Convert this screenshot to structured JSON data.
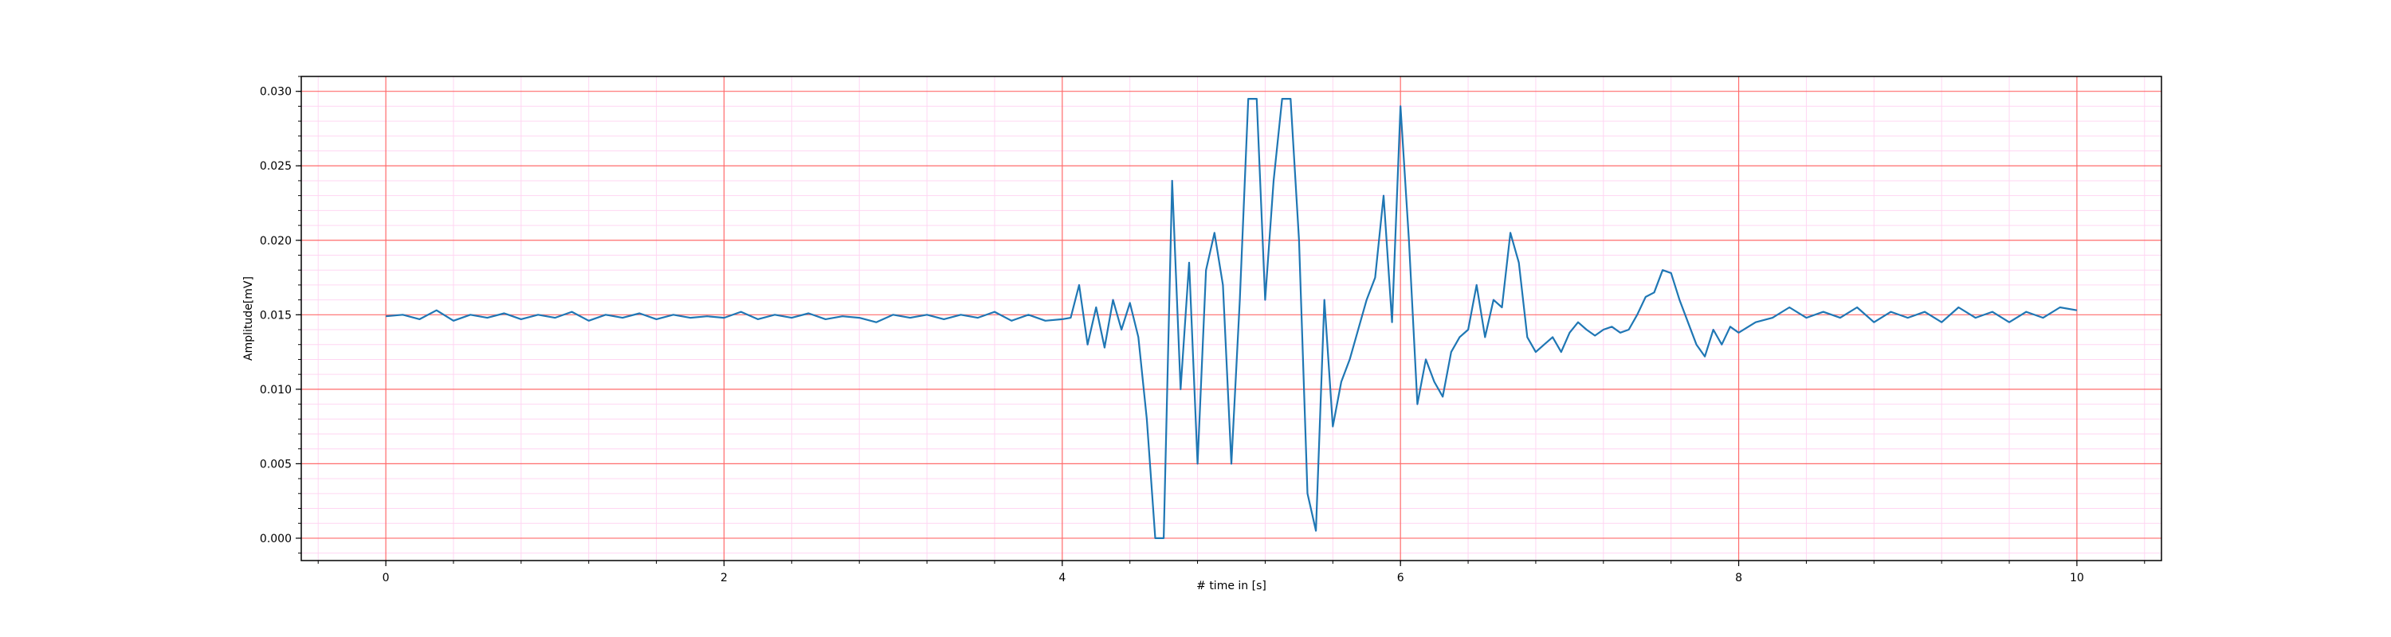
{
  "chart_data": {
    "type": "line",
    "title": "",
    "xlabel": "# time in [s]",
    "ylabel": "Amplitude[mV]",
    "xlim": [
      -0.5,
      10.5
    ],
    "ylim": [
      -0.0015,
      0.031
    ],
    "xticks": [
      0,
      2,
      4,
      6,
      8,
      10
    ],
    "xtick_labels": [
      "0",
      "2",
      "4",
      "6",
      "8",
      "10"
    ],
    "yticks": [
      0.0,
      0.005,
      0.01,
      0.015,
      0.02,
      0.025,
      0.03
    ],
    "ytick_labels": [
      "0.000",
      "0.005",
      "0.010",
      "0.015",
      "0.020",
      "0.025",
      "0.030"
    ],
    "grid": {
      "major": true,
      "minor": true,
      "major_color": "#ff6b6b",
      "minor_color": "#ffd6f2"
    },
    "line_color": "#1f77b4",
    "series": [
      {
        "x": [
          0.0,
          0.1,
          0.2,
          0.3,
          0.4,
          0.5,
          0.6,
          0.7,
          0.8,
          0.9,
          1.0,
          1.1,
          1.2,
          1.3,
          1.4,
          1.5,
          1.6,
          1.7,
          1.8,
          1.9,
          2.0,
          2.1,
          2.2,
          2.3,
          2.4,
          2.5,
          2.6,
          2.7,
          2.8,
          2.9,
          3.0,
          3.1,
          3.2,
          3.3,
          3.4,
          3.5,
          3.6,
          3.7,
          3.8,
          3.9,
          4.0,
          4.05,
          4.1,
          4.15,
          4.2,
          4.25,
          4.3,
          4.35,
          4.4,
          4.45,
          4.5,
          4.55,
          4.6,
          4.65,
          4.7,
          4.75,
          4.8,
          4.85,
          4.9,
          4.95,
          5.0,
          5.05,
          5.1,
          5.15,
          5.2,
          5.25,
          5.3,
          5.35,
          5.4,
          5.45,
          5.5,
          5.55,
          5.6,
          5.65,
          5.7,
          5.75,
          5.8,
          5.85,
          5.9,
          5.95,
          6.0,
          6.05,
          6.1,
          6.15,
          6.2,
          6.25,
          6.3,
          6.35,
          6.4,
          6.45,
          6.5,
          6.55,
          6.6,
          6.65,
          6.7,
          6.75,
          6.8,
          6.85,
          6.9,
          6.95,
          7.0,
          7.05,
          7.1,
          7.15,
          7.2,
          7.25,
          7.3,
          7.35,
          7.4,
          7.45,
          7.5,
          7.55,
          7.6,
          7.65,
          7.7,
          7.75,
          7.8,
          7.85,
          7.9,
          7.95,
          8.0,
          8.1,
          8.2,
          8.3,
          8.4,
          8.5,
          8.6,
          8.7,
          8.8,
          8.9,
          9.0,
          9.1,
          9.2,
          9.3,
          9.4,
          9.5,
          9.6,
          9.7,
          9.8,
          9.9,
          10.0
        ],
        "y": [
          0.0149,
          0.015,
          0.0147,
          0.0153,
          0.0146,
          0.015,
          0.0148,
          0.0151,
          0.0147,
          0.015,
          0.0148,
          0.0152,
          0.0146,
          0.015,
          0.0148,
          0.0151,
          0.0147,
          0.015,
          0.0148,
          0.0149,
          0.0148,
          0.0152,
          0.0147,
          0.015,
          0.0148,
          0.0151,
          0.0147,
          0.0149,
          0.0148,
          0.0145,
          0.015,
          0.0148,
          0.015,
          0.0147,
          0.015,
          0.0148,
          0.0152,
          0.0146,
          0.015,
          0.0146,
          0.0147,
          0.0148,
          0.017,
          0.013,
          0.0155,
          0.0128,
          0.016,
          0.014,
          0.0158,
          0.0135,
          0.008,
          0.0,
          0.0,
          0.024,
          0.01,
          0.0185,
          0.005,
          0.018,
          0.0205,
          0.017,
          0.005,
          0.016,
          0.0295,
          0.0295,
          0.016,
          0.024,
          0.0295,
          0.0295,
          0.02,
          0.003,
          0.0005,
          0.016,
          0.0075,
          0.0105,
          0.012,
          0.014,
          0.016,
          0.0175,
          0.023,
          0.0145,
          0.029,
          0.02,
          0.009,
          0.012,
          0.0105,
          0.0095,
          0.0125,
          0.0135,
          0.014,
          0.017,
          0.0135,
          0.016,
          0.0155,
          0.0205,
          0.0185,
          0.0135,
          0.0125,
          0.013,
          0.0135,
          0.0125,
          0.0138,
          0.0145,
          0.014,
          0.0136,
          0.014,
          0.0142,
          0.0138,
          0.014,
          0.015,
          0.0162,
          0.0165,
          0.018,
          0.0178,
          0.016,
          0.0145,
          0.013,
          0.0122,
          0.014,
          0.013,
          0.0142,
          0.0138,
          0.0145,
          0.0148,
          0.0155,
          0.0148,
          0.0152,
          0.0148,
          0.0155,
          0.0145,
          0.0152,
          0.0148,
          0.0152,
          0.0145,
          0.0155,
          0.0148,
          0.0152,
          0.0145,
          0.0152,
          0.0148,
          0.0155,
          0.0153
        ]
      }
    ]
  }
}
